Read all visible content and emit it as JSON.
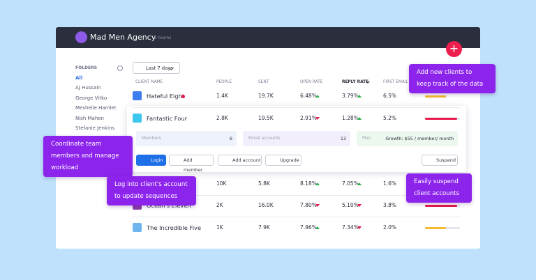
{
  "header": {
    "title": "Mad Men Agency",
    "subtitle": "5 teams"
  },
  "sidebar": {
    "heading": "FOLDERS",
    "folders": [
      "All",
      "AJ Hussain",
      "George Vitko",
      "Meshelle Hamlet",
      "Nish Mahen",
      "Stefanie Jenkins"
    ]
  },
  "filter": "Last 7 days",
  "table": {
    "columns": [
      "CLIENT NAME",
      "PEOPLE",
      "SENT",
      "OPEN RATE",
      "REPLY RATE",
      "FIRST EMAIL"
    ],
    "rows": [
      {
        "name": "Hateful Eight",
        "people": "1.4K",
        "sent": "19.7K",
        "open_rate": "6.48%",
        "open_trend": "up",
        "reply_rate": "3.79%",
        "reply_trend": "up",
        "first_email": "6.5%",
        "color": "#3d7df0",
        "bar": "#f5b82e"
      },
      {
        "name": "Fantastic Four",
        "people": "2.8K",
        "sent": "19.5K",
        "open_rate": "2.91%",
        "open_trend": "down",
        "reply_rate": "1.28%",
        "reply_trend": "up",
        "first_email": "5.2%",
        "color": "#3cc8ec",
        "bar": "#e8194a"
      },
      {
        "people": "10K",
        "sent": "5.8K",
        "open_rate": "8.18%",
        "open_trend": "up",
        "reply_rate": "7.05%",
        "reply_trend": "up",
        "first_email": "1.6%",
        "color": "#3d7df0",
        "bar": "#e8194a"
      },
      {
        "name": "Ocean's Eleven",
        "people": "2K",
        "sent": "16.0K",
        "open_rate": "7.80%",
        "open_trend": "down",
        "reply_rate": "5.10%",
        "reply_trend": "down",
        "first_email": "3.8%",
        "color": "#8a3ea8",
        "bar": "#e8194a"
      },
      {
        "name": "The Incredible Five",
        "people": "1K",
        "sent": "7.9K",
        "open_rate": "7.96%",
        "open_trend": "up",
        "reply_rate": "7.34%",
        "reply_trend": "down",
        "first_email": "2.0%",
        "color": "#6fb5f0",
        "bar": "#f5b82e"
      }
    ]
  },
  "details": {
    "members_label": "Members",
    "members": "6",
    "email_label": "Email accounts",
    "email": "13",
    "plan_label": "Plan",
    "plan": "Growth: $55 / member/ month"
  },
  "actions": [
    "Login",
    "Add member",
    "Add account",
    "Upgrade"
  ],
  "suspend": "Suspend",
  "tooltips": [
    "Add new clients to keep track of the data",
    "Coordinate team members and manage workload",
    "Log into client's account to update sequences",
    "Easily suspend client accounts"
  ]
}
